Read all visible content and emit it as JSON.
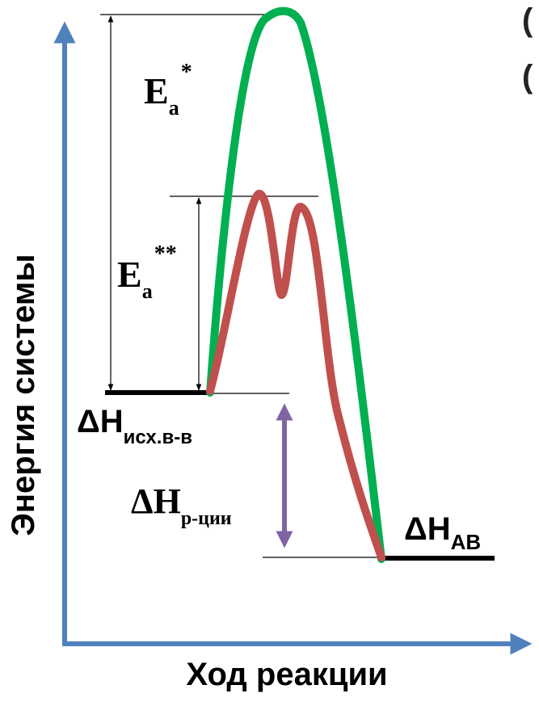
{
  "axes": {
    "y_label": "Энергия системы",
    "x_label": "Ход реакции",
    "color": "#4f81bd"
  },
  "labels": {
    "ea_star_main": "E",
    "ea_star_sub": "a",
    "ea_star_sup": "*",
    "ea_dstar_main": "E",
    "ea_dstar_sub": "a",
    "ea_dstar_sup": "**",
    "dh_reactants_main": "ΔH",
    "dh_reactants_sub": "исх.в-в",
    "dh_reaction_main": "ΔH",
    "dh_reaction_sub": "р-ции",
    "dh_products_main": "ΔH",
    "dh_products_sub": "AB",
    "cropped_right_1": "(",
    "cropped_right_2": "("
  },
  "curves": {
    "uncatalyzed_color": "#00b050",
    "catalyzed_color": "#c0504d",
    "delta_arrow_color": "#8064a2"
  },
  "levels": {
    "reactant_level_color": "#000000",
    "product_level_color": "#000000"
  }
}
